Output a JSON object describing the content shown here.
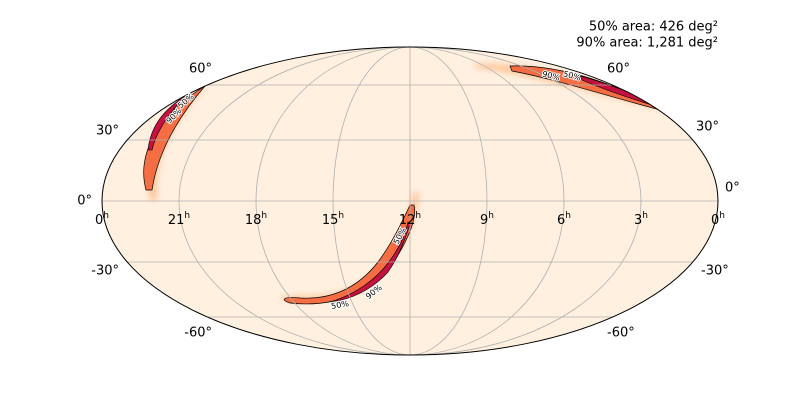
{
  "annotations": [
    "50% area: 426 deg²",
    "90% area: 1,281 deg²"
  ],
  "dec_labels": [
    "60°",
    "30°",
    "0°",
    "-30°",
    "-60°"
  ],
  "ra_labels": [
    {
      "number": "0",
      "unit": "h"
    },
    {
      "number": "21",
      "unit": "h"
    },
    {
      "number": "18",
      "unit": "h"
    },
    {
      "number": "15",
      "unit": "h"
    },
    {
      "number": "12",
      "unit": "h"
    },
    {
      "number": "9",
      "unit": "h"
    },
    {
      "number": "6",
      "unit": "h"
    },
    {
      "number": "3",
      "unit": "h"
    },
    {
      "number": "0",
      "unit": "h"
    }
  ],
  "contour_labels": [
    "90%",
    "50%",
    "50%",
    "90%",
    "50%",
    "90%",
    "50%"
  ]
}
